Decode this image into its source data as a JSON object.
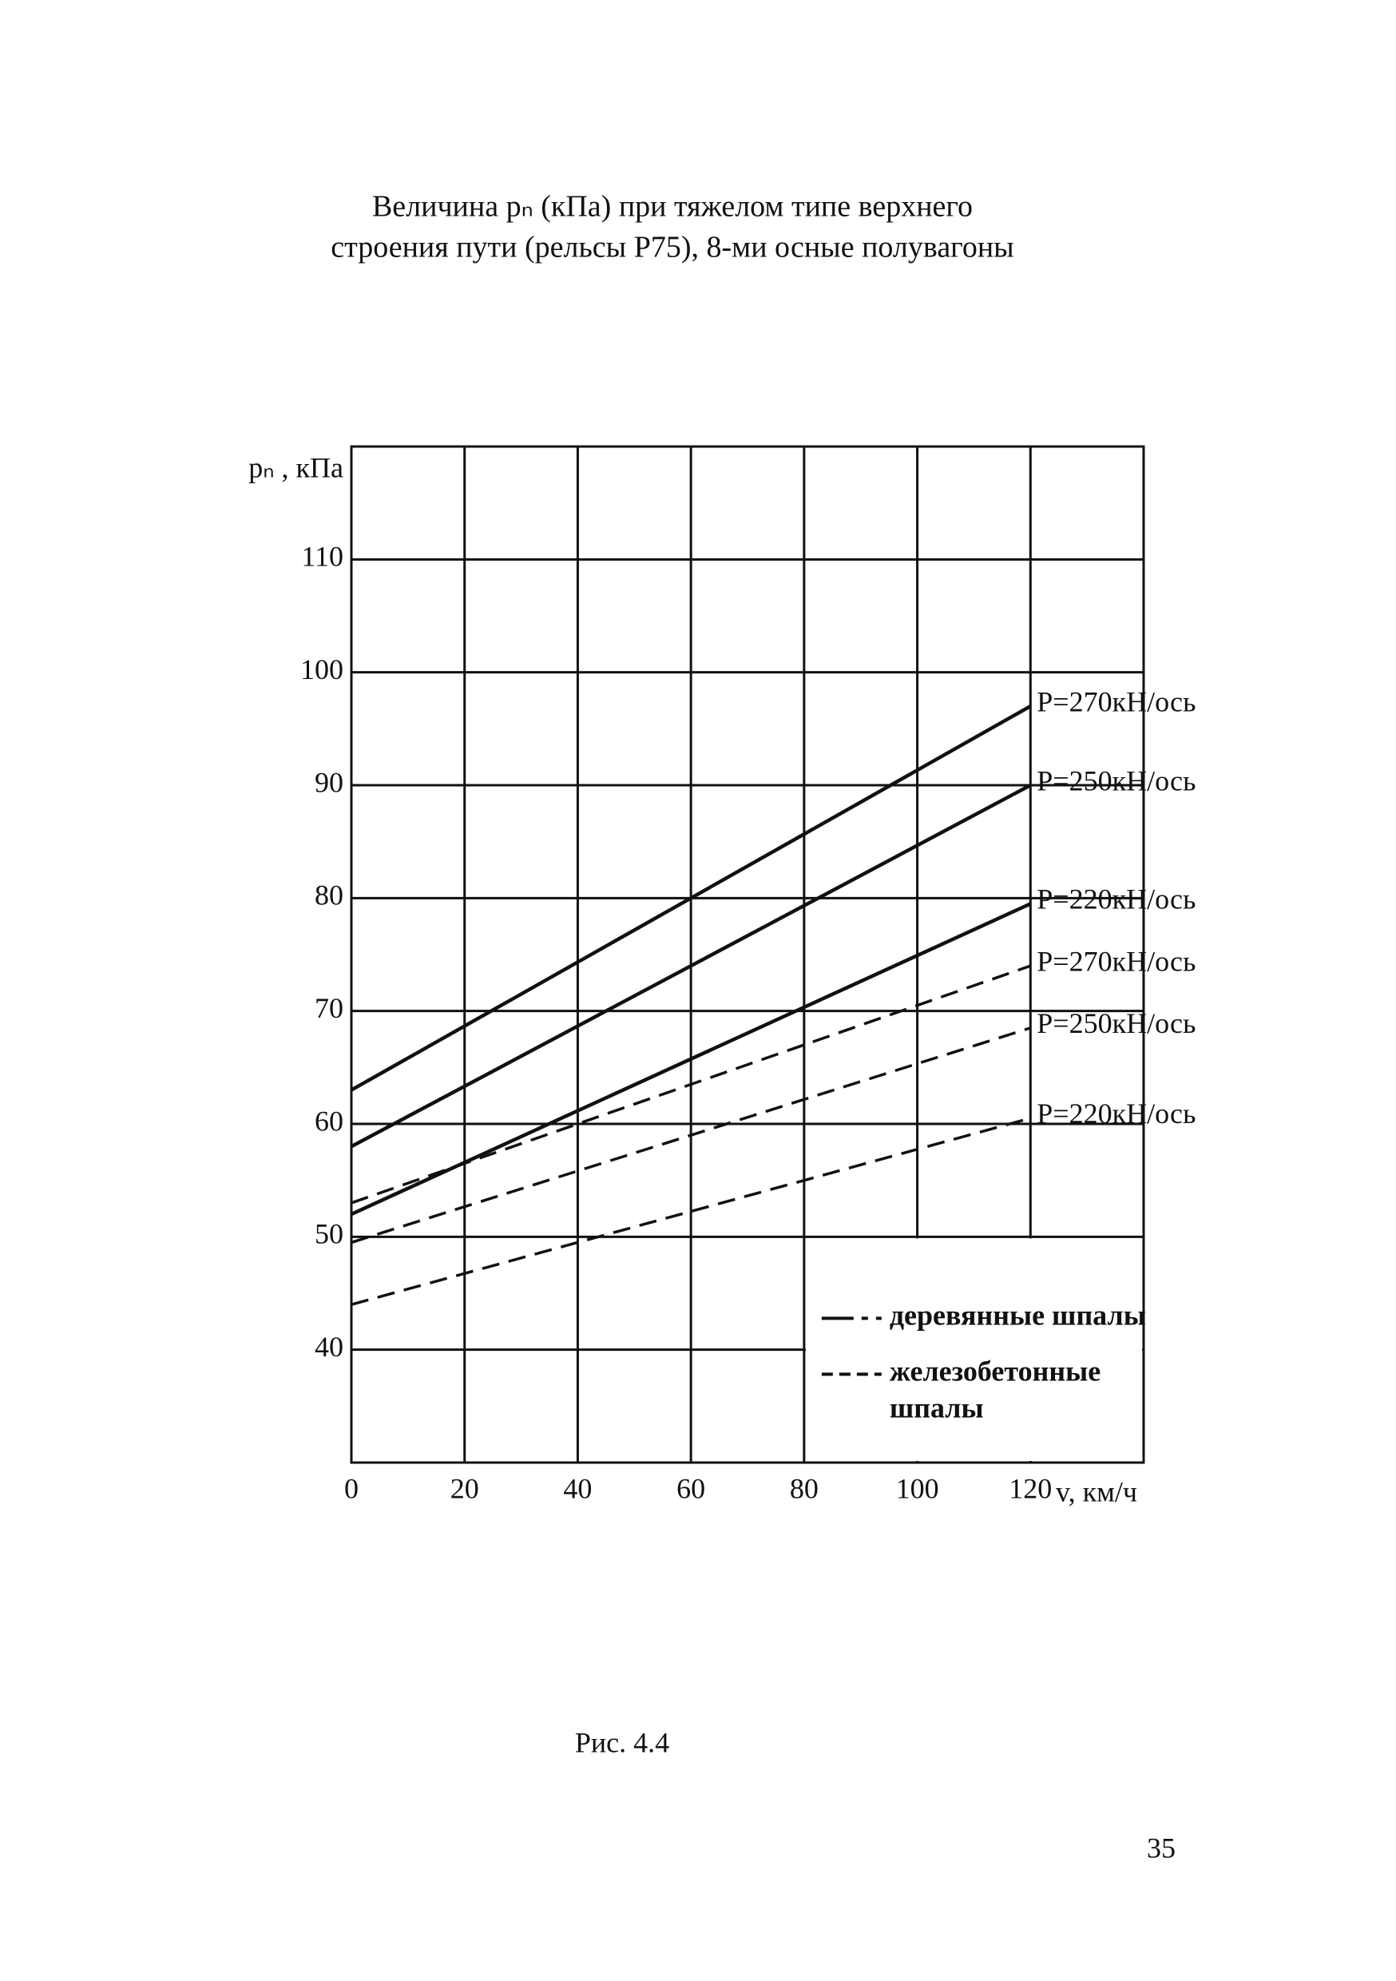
{
  "chart_data": {
    "type": "line",
    "title_lines": [
      "Величина pₙ (кПа) при тяжелом типе верхнего",
      "строения пути (рельсы Р75), 8-ми осные полувагоны"
    ],
    "y_label": "pₙ , кПа",
    "x_label": "v, км/ч",
    "x": [
      0,
      120
    ],
    "xlim": [
      0,
      140
    ],
    "ylim": [
      30,
      120
    ],
    "xticks": [
      0,
      20,
      40,
      60,
      80,
      100,
      120
    ],
    "yticks": [
      40,
      50,
      60,
      70,
      80,
      90,
      100,
      110
    ],
    "grid": true,
    "series": [
      {
        "name": "P=270кН/ось",
        "style": "solid",
        "color": "#111111",
        "values": [
          63,
          97
        ]
      },
      {
        "name": "P=250кН/ось",
        "style": "solid",
        "color": "#111111",
        "values": [
          58,
          90
        ]
      },
      {
        "name": "P=220кН/ось",
        "style": "solid",
        "color": "#111111",
        "values": [
          52,
          79.5
        ]
      },
      {
        "name": "P=270кН/ось",
        "style": "dashed",
        "color": "#111111",
        "values": [
          53,
          74
        ]
      },
      {
        "name": "P=250кН/ось",
        "style": "dashed",
        "color": "#111111",
        "values": [
          49.5,
          68.5
        ]
      },
      {
        "name": "P=220кН/ось",
        "style": "dashed",
        "color": "#111111",
        "values": [
          44,
          60.5
        ]
      }
    ],
    "legend": [
      {
        "style": "solid",
        "label_lines": [
          "деревянные шпалы"
        ]
      },
      {
        "style": "dashed",
        "label_lines": [
          "железобетонные",
          "шпалы"
        ]
      }
    ],
    "legend_position": "lower right",
    "caption": "Рис. 4.4"
  },
  "page_number": "35"
}
